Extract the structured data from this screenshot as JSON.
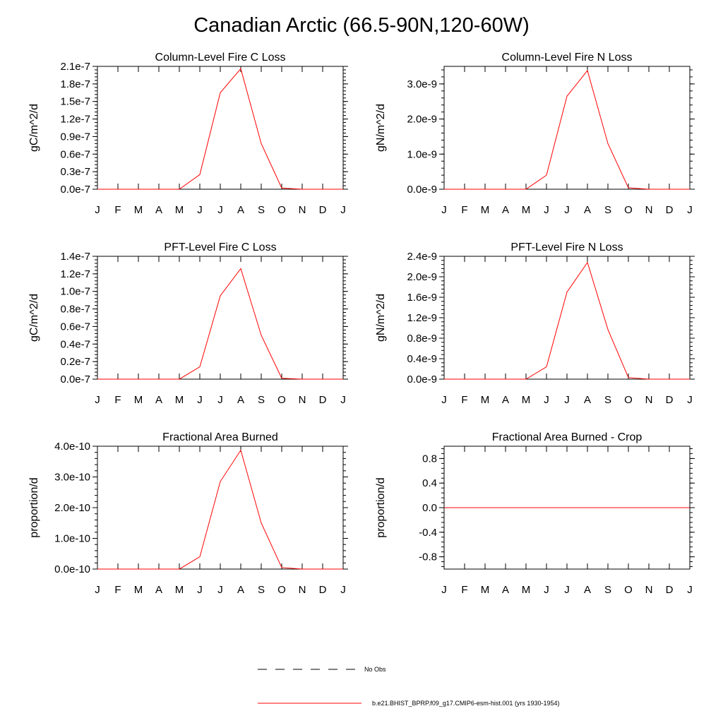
{
  "page": {
    "title": "Canadian Arctic (66.5-90N,120-60W)"
  },
  "chart_data": [
    {
      "type": "line",
      "title": "Column-Level Fire C Loss",
      "ylabel": "gC/m^2/d",
      "x": [
        "J",
        "F",
        "M",
        "A",
        "M",
        "J",
        "J",
        "A",
        "S",
        "O",
        "N",
        "D",
        "J"
      ],
      "ylim": [
        0,
        2.1e-07
      ],
      "yticks": [
        0,
        3e-08,
        6e-08,
        9e-08,
        1.2e-07,
        1.5e-07,
        1.8e-07,
        2.1e-07
      ],
      "ytick_labels": [
        "0.0e-7",
        "0.3e-7",
        "0.6e-7",
        "0.9e-7",
        "1.2e-7",
        "1.5e-7",
        "1.8e-7",
        "2.1e-7"
      ],
      "series": [
        {
          "name": "b.e21.BHIST_BPRP.f09_g17.CMIP6-esm-hist.001 (yrs 1930-1954)",
          "color": "#ff0000",
          "values": [
            0,
            0,
            0,
            0,
            0,
            2.5e-08,
            1.65e-07,
            2.06e-07,
            7.8e-08,
            2e-09,
            0,
            0,
            0
          ]
        }
      ]
    },
    {
      "type": "line",
      "title": "Column-Level Fire N Loss",
      "ylabel": "gN/m^2/d",
      "x": [
        "J",
        "F",
        "M",
        "A",
        "M",
        "J",
        "J",
        "A",
        "S",
        "O",
        "N",
        "D",
        "J"
      ],
      "ylim": [
        0,
        3.5e-09
      ],
      "yticks": [
        0,
        1e-09,
        2e-09,
        3e-09
      ],
      "ytick_labels": [
        "0.0e-9",
        "1.0e-9",
        "2.0e-9",
        "3.0e-9"
      ],
      "series": [
        {
          "name": "b.e21.BHIST_BPRP.f09_g17.CMIP6-esm-hist.001 (yrs 1930-1954)",
          "color": "#ff0000",
          "values": [
            0,
            0,
            0,
            0,
            0,
            4e-10,
            2.65e-09,
            3.38e-09,
            1.3e-09,
            4e-11,
            0,
            0,
            0
          ]
        }
      ]
    },
    {
      "type": "line",
      "title": "PFT-Level Fire C Loss",
      "ylabel": "gC/m^2/d",
      "x": [
        "J",
        "F",
        "M",
        "A",
        "M",
        "J",
        "J",
        "A",
        "S",
        "O",
        "N",
        "D",
        "J"
      ],
      "ylim": [
        0,
        1.4e-07
      ],
      "yticks": [
        0,
        2e-08,
        4e-08,
        6e-08,
        8e-08,
        1e-07,
        1.2e-07,
        1.4e-07
      ],
      "ytick_labels": [
        "0.0e-7",
        "0.2e-7",
        "0.4e-7",
        "0.6e-7",
        "0.8e-7",
        "1.0e-7",
        "1.2e-7",
        "1.4e-7"
      ],
      "series": [
        {
          "name": "b.e21.BHIST_BPRP.f09_g17.CMIP6-esm-hist.001 (yrs 1930-1954)",
          "color": "#ff0000",
          "values": [
            0,
            0,
            0,
            0,
            0,
            1.4e-08,
            9.5e-08,
            1.26e-07,
            5e-08,
            1e-09,
            0,
            0,
            0
          ]
        }
      ]
    },
    {
      "type": "line",
      "title": "PFT-Level Fire N Loss",
      "ylabel": "gN/m^2/d",
      "x": [
        "J",
        "F",
        "M",
        "A",
        "M",
        "J",
        "J",
        "A",
        "S",
        "O",
        "N",
        "D",
        "J"
      ],
      "ylim": [
        0,
        2.4e-09
      ],
      "yticks": [
        0,
        4e-10,
        8e-10,
        1.2e-09,
        1.6e-09,
        2e-09,
        2.4e-09
      ],
      "ytick_labels": [
        "0.0e-9",
        "0.4e-9",
        "0.8e-9",
        "1.2e-9",
        "1.6e-9",
        "2.0e-9",
        "2.4e-9"
      ],
      "series": [
        {
          "name": "b.e21.BHIST_BPRP.f09_g17.CMIP6-esm-hist.001 (yrs 1930-1954)",
          "color": "#ff0000",
          "values": [
            0,
            0,
            0,
            0,
            0,
            2.4e-10,
            1.7e-09,
            2.28e-09,
            9.7e-10,
            3e-11,
            0,
            0,
            0
          ]
        }
      ]
    },
    {
      "type": "line",
      "title": "Fractional Area Burned",
      "ylabel": "proportion/d",
      "x": [
        "J",
        "F",
        "M",
        "A",
        "M",
        "J",
        "J",
        "A",
        "S",
        "O",
        "N",
        "D",
        "J"
      ],
      "ylim": [
        0,
        4e-10
      ],
      "yticks": [
        0,
        1e-10,
        2e-10,
        3e-10,
        4e-10
      ],
      "ytick_labels": [
        "0.0e-10",
        "1.0e-10",
        "2.0e-10",
        "3.0e-10",
        "4.0e-10"
      ],
      "series": [
        {
          "name": "b.e21.BHIST_BPRP.f09_g17.CMIP6-esm-hist.001 (yrs 1930-1954)",
          "color": "#ff0000",
          "values": [
            0,
            0,
            0,
            0,
            0,
            4e-11,
            2.85e-10,
            3.87e-10,
            1.5e-10,
            5e-12,
            0,
            0,
            0
          ]
        }
      ]
    },
    {
      "type": "line",
      "title": "Fractional Area Burned - Crop",
      "ylabel": "proportion/d",
      "x": [
        "J",
        "F",
        "M",
        "A",
        "M",
        "J",
        "J",
        "A",
        "S",
        "O",
        "N",
        "D",
        "J"
      ],
      "ylim": [
        -1,
        1
      ],
      "yticks": [
        -0.8,
        -0.4,
        0,
        0.4,
        0.8
      ],
      "ytick_labels": [
        "-0.8",
        "-0.4",
        "0.0",
        "0.4",
        "0.8"
      ],
      "series": [
        {
          "name": "b.e21.BHIST_BPRP.f09_g17.CMIP6-esm-hist.001 (yrs 1930-1954)",
          "color": "#ff0000",
          "values": [
            0,
            0,
            0,
            0,
            0,
            0,
            0,
            0,
            0,
            0,
            0,
            0,
            0
          ]
        }
      ]
    }
  ],
  "legend": {
    "items": [
      {
        "label": "No Obs",
        "style": "dashed",
        "color": "#000000"
      },
      {
        "label": "b.e21.BHIST_BPRP.f09_g17.CMIP6-esm-hist.001 (yrs 1930-1954)",
        "style": "solid",
        "color": "#ff0000"
      }
    ]
  }
}
